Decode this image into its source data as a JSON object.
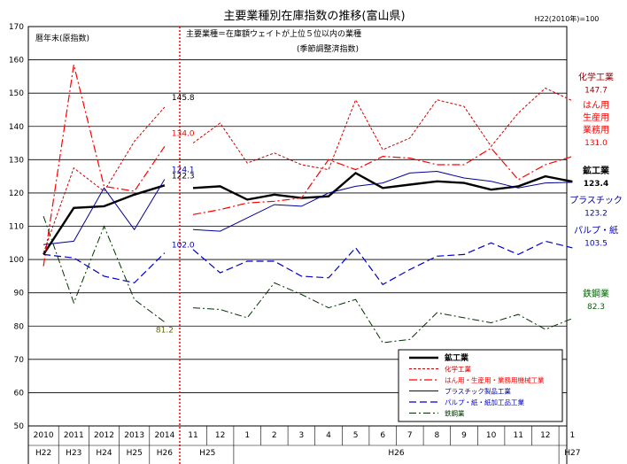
{
  "chart_data": {
    "type": "line",
    "title": "主要業種別在庫指数の推移(富山県)",
    "base_note": "H22(2010年)=100",
    "left_panel_note": "暦年末(原指数)",
    "right_panel_note_line1": "主要業種＝在庫額ウェイトが上位５位以内の業種",
    "right_panel_note_line2": "(季節調整済指数)",
    "ylim": [
      50,
      170
    ],
    "yticks": [
      "50",
      "60",
      "70",
      "80",
      "90",
      "100",
      "110",
      "120",
      "130",
      "140",
      "150",
      "160",
      "170"
    ],
    "annual_categories": [
      "2010",
      "2011",
      "2012",
      "2013",
      "2014"
    ],
    "annual_era": [
      "H22",
      "H23",
      "H24",
      "H25",
      "H26"
    ],
    "monthly_categories": [
      "11",
      "12",
      "1",
      "2",
      "3",
      "4",
      "5",
      "6",
      "7",
      "8",
      "9",
      "10",
      "11",
      "12",
      "1"
    ],
    "monthly_era": [
      {
        "label": "H25",
        "start": 0,
        "end": 1
      },
      {
        "label": "H26",
        "start": 2,
        "end": 13
      },
      {
        "label": "H27",
        "start": 14,
        "end": 14
      }
    ],
    "series": [
      {
        "name": "鉱工業",
        "color": "#000000",
        "width": 2.4,
        "dash": "",
        "annual": [
          101.5,
          115.5,
          116.0,
          119.5,
          122.3
        ],
        "monthly": [
          121.5,
          122.0,
          118.0,
          119.5,
          118.5,
          119.0,
          126.0,
          121.5,
          122.5,
          123.5,
          123.0,
          121.0,
          122.0,
          125.0,
          123.4
        ]
      },
      {
        "name": "化学工業",
        "color": "#cc0000",
        "width": 1,
        "dash": "3,2",
        "annual": [
          102.0,
          127.5,
          120.5,
          135.5,
          145.8
        ],
        "monthly": [
          135.0,
          141.0,
          129.0,
          132.0,
          128.5,
          127.0,
          148.0,
          133.0,
          136.5,
          148.0,
          146.0,
          134.0,
          144.0,
          151.5,
          147.7
        ]
      },
      {
        "name": "はん用・生産用・業務用機械工業",
        "color": "#ff0000",
        "width": 1.2,
        "dash": "9,3,2,3",
        "annual": [
          98.0,
          158.5,
          122.0,
          120.5,
          134.0
        ],
        "monthly": [
          113.5,
          115.0,
          117.0,
          117.5,
          118.5,
          130.0,
          127.0,
          131.0,
          130.5,
          128.5,
          128.5,
          133.5,
          124.0,
          128.5,
          131.0
        ]
      },
      {
        "name": "プラスチック製品工業",
        "color": "#000099",
        "width": 1,
        "dash": "",
        "annual": [
          104.5,
          105.5,
          121.5,
          109.0,
          124.1
        ],
        "monthly": [
          109.0,
          108.5,
          112.5,
          116.5,
          116.0,
          120.0,
          122.0,
          123.0,
          126.0,
          126.5,
          124.5,
          123.5,
          121.5,
          123.0,
          123.2
        ]
      },
      {
        "name": "パルプ・紙・紙加工品工業",
        "color": "#0000cc",
        "width": 1.2,
        "dash": "8,4",
        "annual": [
          101.5,
          100.5,
          95.0,
          93.0,
          102.0
        ],
        "monthly": [
          103.0,
          96.0,
          99.5,
          99.5,
          95.0,
          94.5,
          103.5,
          92.5,
          97.0,
          101.0,
          101.5,
          105.0,
          101.5,
          105.5,
          103.5
        ]
      },
      {
        "name": "鉄鋼業",
        "color": "#003300",
        "width": 1,
        "dash": "8,3,2,3",
        "annual": [
          113.0,
          87.0,
          110.0,
          88.0,
          81.2
        ],
        "monthly": [
          85.5,
          85.0,
          82.5,
          93.0,
          89.5,
          85.5,
          88.0,
          75.0,
          76.0,
          84.0,
          82.5,
          81.0,
          83.5,
          79.0,
          82.3
        ]
      }
    ],
    "annual_labels": [
      {
        "series": 0,
        "text": "122.3",
        "color": "#000000"
      },
      {
        "series": 1,
        "text": "145.8",
        "color": "#000000"
      },
      {
        "series": 2,
        "text": "134.0",
        "color": "#ff0000"
      },
      {
        "series": 3,
        "text": "124.1",
        "color": "#000099"
      },
      {
        "series": 4,
        "text": "102.0",
        "color": "#0000cc"
      },
      {
        "series": 5,
        "text": "81.2",
        "color": "#666600"
      }
    ],
    "side_labels": [
      {
        "lines": [
          "化学工業",
          "147.7"
        ],
        "color": "#990000",
        "value": 152
      },
      {
        "lines": [
          "はん用",
          "生産用",
          "業務用",
          "131.0"
        ],
        "color": "#ff0000",
        "value": 140
      },
      {
        "lines": [
          "鉱工業",
          "123.4"
        ],
        "color": "#000000",
        "value": 124,
        "bold": true
      },
      {
        "lines": [
          "プラスチック",
          "123.2"
        ],
        "color": "#000099",
        "value": 115
      },
      {
        "lines": [
          "パルプ・紙",
          "103.5"
        ],
        "color": "#0000cc",
        "value": 106
      },
      {
        "lines": [
          "鉄鋼業",
          "82.3"
        ],
        "color": "#006600",
        "value": 87
      }
    ],
    "legend": {
      "position": "bottom-right",
      "entries": [
        "鉱工業",
        "化学工業",
        "はん用・生産用・業務用機械工業",
        "プラスチック製品工業",
        "パルプ・紙・紙加工品工業",
        "鉄鋼業"
      ]
    },
    "grid": true
  }
}
